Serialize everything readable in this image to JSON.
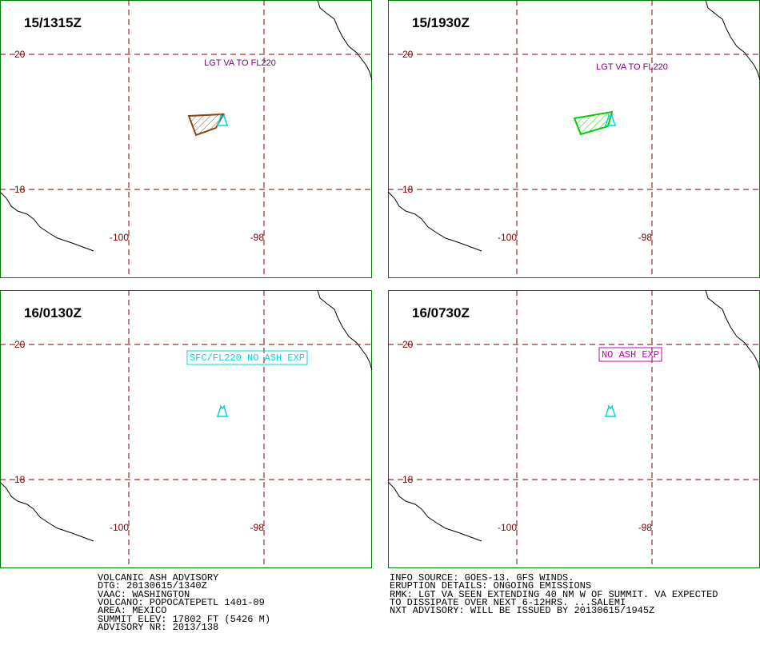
{
  "panels": [
    {
      "time": "15/1315Z",
      "annotation": "LGT VA TO FL220",
      "annotation_color": "#800080",
      "boxed": false,
      "ash_color": "#8b4513"
    },
    {
      "time": "15/1930Z",
      "annotation": "LGT VA TO FL220",
      "annotation_color": "#800080",
      "boxed": false,
      "ash_color": "#00d000"
    },
    {
      "time": "16/0130Z",
      "annotation": "SFC/FL220 NO ASH EXP",
      "annotation_color": "#00d8d8",
      "boxed": true,
      "ash_color": null
    },
    {
      "time": "16/0730Z",
      "annotation": "NO ASH EXP",
      "annotation_color": "#c000c0",
      "boxed": true,
      "ash_color": null
    }
  ],
  "grid": {
    "lat": [
      "20",
      "18"
    ],
    "lon": [
      "-100",
      "-98"
    ]
  },
  "footer": {
    "left": [
      "VOLCANIC ASH ADVISORY",
      "DTG: 20130615/1340Z",
      "VAAC: WASHINGTON",
      "VOLCANO: POPOCATEPETL 1401-09",
      "AREA: MEXICO",
      "SUMMIT ELEV: 17802 FT (5426 M)",
      "ADVISORY NR: 2013/138"
    ],
    "right": [
      "INFO SOURCE: GOES-13. GFS WINDS.",
      "ERUPTION DETAILS: ONGOING EMISSIONS",
      "RMK: LGT VA SEEN EXTENDING 40 NM W OF SUMMIT. VA EXPECTED",
      "TO DISSIPATE OVER NEXT 6-12HRS. ...SALEMI",
      "NXT ADVISORY: WILL BE ISSUED BY 20130615/1945Z"
    ]
  }
}
